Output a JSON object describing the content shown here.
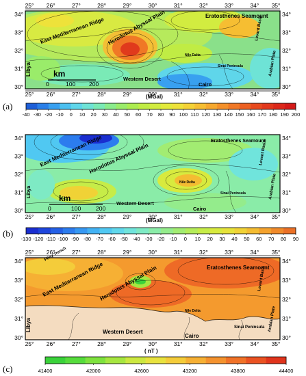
{
  "x_ticks": [
    "25°",
    "26°",
    "27°",
    "28°",
    "29°",
    "30°",
    "31°",
    "32°",
    "33°",
    "34°",
    "35°"
  ],
  "y_ticks": [
    "34°",
    "33°",
    "32°",
    "31°",
    "30°"
  ],
  "panels": [
    {
      "id": "a",
      "label": "(a)",
      "unit": "(MGal)",
      "colorbar": {
        "ticks": [
          "-40",
          "-30",
          "-20",
          "-10",
          "0",
          "10",
          "20",
          "30",
          "40",
          "50",
          "60",
          "70",
          "80",
          "90",
          "100",
          "110",
          "120",
          "130",
          "140",
          "150",
          "160",
          "170",
          "180",
          "190",
          "200"
        ],
        "colors": [
          "#1e5fd8",
          "#2a7fe8",
          "#38a0f0",
          "#4cc0f0",
          "#5fd6ea",
          "#6ee3d6",
          "#7aeab6",
          "#8aec8c",
          "#9aec6a",
          "#acec50",
          "#c0ec44",
          "#d2ec40",
          "#e2ea3c",
          "#eee23a",
          "#f4d236",
          "#f6be32",
          "#f6a82e",
          "#f4902a",
          "#f07826",
          "#ec6022",
          "#e84a1e",
          "#e2381c",
          "#dc281a",
          "#d41a18"
        ]
      },
      "labels": {
        "east_med_ridge": "East Mediterranean Ridge",
        "herodotus": "Herodotus Abyssal Plain",
        "eratosthenes": "Eratosthenes Seamount",
        "levant": "Levant Basin",
        "libya": "Libya",
        "western_desert": "Western Desert",
        "cairo": "Cairo",
        "nile_delta": "Nile Delta",
        "arabian": "Arabian Plate",
        "sinai": "Sinai Peninsula",
        "scale_unit": "km",
        "scale_ticks": [
          "0",
          "100",
          "200"
        ]
      }
    },
    {
      "id": "b",
      "label": "(b)",
      "unit": "(MGal)",
      "colorbar": {
        "ticks": [
          "-130",
          "-120",
          "-110",
          "-100",
          "-90",
          "-80",
          "-70",
          "-60",
          "-50",
          "-40",
          "-30",
          "-20",
          "-10",
          "0",
          "10",
          "20",
          "30",
          "40",
          "50",
          "60",
          "70",
          "80",
          "90"
        ],
        "colors": [
          "#1a2ed0",
          "#1e46dc",
          "#2460e6",
          "#2c7cee",
          "#3698f2",
          "#42b2f4",
          "#50c8f2",
          "#60d8ec",
          "#70e4dc",
          "#7eeac4",
          "#8aeca8",
          "#94ec8c",
          "#a2ec72",
          "#b4ec5a",
          "#c6ec48",
          "#d8ea3e",
          "#e6e23a",
          "#f0d236",
          "#f4bc32",
          "#f4a22e",
          "#f08a2a",
          "#ea7026"
        ]
      },
      "labels": {
        "east_med_ridge": "East Mediterranean Ridge",
        "herodotus": "Herodotus Abyssal Plain",
        "eratosthenes": "Eratosthenes Seamount",
        "levant": "Levant Basin",
        "libya": "Libya",
        "western_desert": "Western Desert",
        "cairo": "Cairo",
        "nile_delta": "Nile Delta",
        "arabian": "Arabian Plate",
        "sinai": "Sinai Peninsula",
        "scale_unit": "km",
        "scale_ticks": [
          "0",
          "100",
          "200"
        ]
      }
    },
    {
      "id": "c",
      "label": "(c)",
      "unit": "( nT )",
      "colorbar": {
        "ticks": [
          "41400",
          "42000",
          "42600",
          "43200",
          "43800",
          "44400"
        ],
        "colors": [
          "#3ad23a",
          "#56dc3c",
          "#7ee23e",
          "#a6e640",
          "#cce840",
          "#e8e23e",
          "#f4cc3a",
          "#f6b034",
          "#f4922e",
          "#f07228",
          "#ea5222",
          "#e0341c"
        ]
      },
      "labels": {
        "east_med_ridge": "East Mediterranean Ridge",
        "herodotus": "Herodotus Abyssal Plain",
        "eratosthenes": "Eratosthenes Seamount",
        "levant": "Levant Basin",
        "libya": "Libya",
        "western_desert": "Western Desert",
        "cairo": "Cairo",
        "nile_delta": "Nile Delta",
        "arabian": "Arabian Plate",
        "sinai": "Sinai Peninsula",
        "pliny": "Pliny Trench"
      }
    }
  ]
}
